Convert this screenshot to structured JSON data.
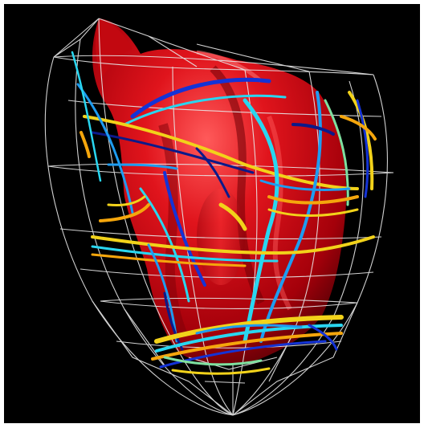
{
  "image": {
    "subject": "heart",
    "style": "3d-render",
    "background_color": "#000000",
    "border_color": "#ffffff",
    "palette": {
      "surface": "#d4101a",
      "surface_highlight": "#ff6a6a",
      "surface_shadow": "#5a0006",
      "mesh": "#e8e8e8",
      "fiber_colors": [
        "#1433d6",
        "#1e9cf0",
        "#29d6f0",
        "#7fe0a0",
        "#f2d21a",
        "#f5a60c",
        "#0b1a8a"
      ]
    }
  }
}
